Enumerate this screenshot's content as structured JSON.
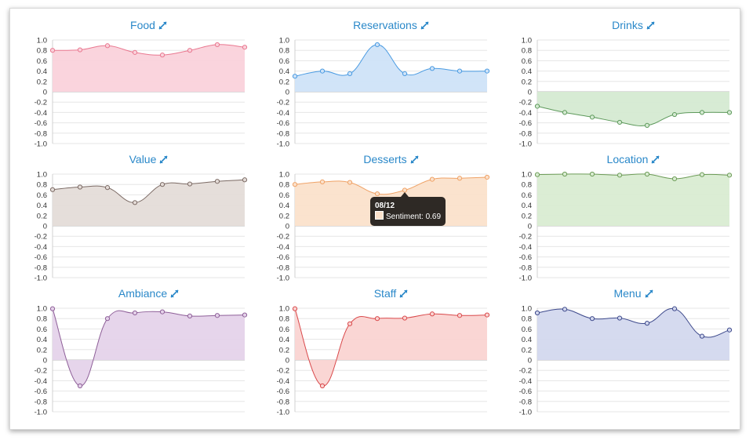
{
  "chart_data": [
    {
      "type": "area",
      "title": "Food",
      "x": [
        1,
        2,
        3,
        4,
        5,
        6,
        7,
        8
      ],
      "series": [
        {
          "values": [
            0.8,
            0.81,
            0.89,
            0.76,
            0.71,
            0.8,
            0.91,
            0.86
          ]
        }
      ],
      "ylim": [
        -1,
        1
      ],
      "yticks": [
        "1.0",
        "0.8",
        "0.6",
        "0.4",
        "0.2",
        "0",
        "-0.2",
        "-0.4",
        "-0.6",
        "-0.8",
        "-1.0"
      ],
      "grid": true,
      "line_color": "#e97890",
      "fill_color": "#fad2db"
    },
    {
      "type": "area",
      "title": "Reservations",
      "x": [
        1,
        2,
        3,
        4,
        5,
        6,
        7,
        8
      ],
      "series": [
        {
          "values": [
            0.3,
            0.4,
            0.35,
            0.91,
            0.35,
            0.45,
            0.4,
            0.4
          ]
        }
      ],
      "ylim": [
        -1,
        1
      ],
      "yticks": [
        "1.0",
        "0.8",
        "0.6",
        "0.4",
        "0.2",
        "0",
        "-0.2",
        "-0.4",
        "-0.6",
        "-0.8",
        "-1.0"
      ],
      "grid": true,
      "line_color": "#4a9be2",
      "fill_color": "#cfe3f8"
    },
    {
      "type": "area",
      "title": "Drinks",
      "x": [
        1,
        2,
        3,
        4,
        5,
        6,
        7,
        8
      ],
      "series": [
        {
          "values": [
            -0.28,
            -0.4,
            -0.49,
            -0.59,
            -0.65,
            -0.44,
            -0.4,
            -0.4
          ]
        }
      ],
      "ylim": [
        -1,
        1
      ],
      "yticks": [
        "1.0",
        "0.8",
        "0.6",
        "0.4",
        "0.2",
        "0",
        "-0.2",
        "-0.4",
        "-0.6",
        "-0.8",
        "-1.0"
      ],
      "grid": true,
      "line_color": "#5e9a5c",
      "fill_color": "#d5ead2"
    },
    {
      "type": "area",
      "title": "Value",
      "x": [
        1,
        2,
        3,
        4,
        5,
        6,
        7,
        8
      ],
      "series": [
        {
          "values": [
            0.7,
            0.75,
            0.74,
            0.45,
            0.8,
            0.81,
            0.86,
            0.89
          ]
        }
      ],
      "ylim": [
        -1,
        1
      ],
      "yticks": [
        "1.0",
        "0.8",
        "0.6",
        "0.4",
        "0.2",
        "0",
        "-0.2",
        "-0.4",
        "-0.6",
        "-0.8",
        "-1.0"
      ],
      "grid": true,
      "line_color": "#7b6a64",
      "fill_color": "#e4dcd8"
    },
    {
      "type": "area",
      "title": "Desserts",
      "x": [
        1,
        2,
        3,
        4,
        5,
        6,
        7,
        8
      ],
      "series": [
        {
          "values": [
            0.8,
            0.85,
            0.84,
            0.62,
            0.69,
            0.9,
            0.92,
            0.94
          ]
        }
      ],
      "ylim": [
        -1,
        1
      ],
      "yticks": [
        "1.0",
        "0.8",
        "0.6",
        "0.4",
        "0.2",
        "0",
        "-0.2",
        "-0.4",
        "-0.6",
        "-0.8",
        "-1.0"
      ],
      "grid": true,
      "line_color": "#efa266",
      "fill_color": "#fbe1cb"
    },
    {
      "type": "area",
      "title": "Location",
      "x": [
        1,
        2,
        3,
        4,
        5,
        6,
        7,
        8
      ],
      "series": [
        {
          "values": [
            0.99,
            1.0,
            1.0,
            0.98,
            1.0,
            0.91,
            0.99,
            0.98
          ]
        }
      ],
      "ylim": [
        -1,
        1
      ],
      "yticks": [
        "1.0",
        "0.8",
        "0.6",
        "0.4",
        "0.2",
        "0",
        "-0.2",
        "-0.4",
        "-0.6",
        "-0.8",
        "-1.0"
      ],
      "grid": true,
      "line_color": "#6d9c57",
      "fill_color": "#d9ecd2"
    },
    {
      "type": "area",
      "title": "Ambiance",
      "x": [
        1,
        2,
        3,
        4,
        5,
        6,
        7,
        8
      ],
      "series": [
        {
          "values": [
            0.99,
            -0.5,
            0.8,
            0.91,
            0.93,
            0.85,
            0.86,
            0.87
          ]
        }
      ],
      "ylim": [
        -1,
        1
      ],
      "yticks": [
        "1.0",
        "0.8",
        "0.6",
        "0.4",
        "0.2",
        "0",
        "-0.2",
        "-0.4",
        "-0.6",
        "-0.8",
        "-1.0"
      ],
      "grid": true,
      "line_color": "#8e5f98",
      "fill_color": "#e5d3ea"
    },
    {
      "type": "area",
      "title": "Staff",
      "x": [
        1,
        2,
        3,
        4,
        5,
        6,
        7,
        8
      ],
      "series": [
        {
          "values": [
            0.99,
            -0.5,
            0.7,
            0.8,
            0.81,
            0.89,
            0.86,
            0.87
          ]
        }
      ],
      "ylim": [
        -1,
        1
      ],
      "yticks": [
        "1.0",
        "0.8",
        "0.6",
        "0.4",
        "0.2",
        "0",
        "-0.2",
        "-0.4",
        "-0.6",
        "-0.8",
        "-1.0"
      ],
      "grid": true,
      "line_color": "#d9494b",
      "fill_color": "#fad4d2"
    },
    {
      "type": "area",
      "title": "Menu",
      "x": [
        1,
        2,
        3,
        4,
        5,
        6,
        7,
        8
      ],
      "series": [
        {
          "values": [
            0.91,
            0.98,
            0.8,
            0.81,
            0.71,
            0.99,
            0.46,
            0.58
          ]
        }
      ],
      "ylim": [
        -1,
        1
      ],
      "yticks": [
        "1.0",
        "0.8",
        "0.6",
        "0.4",
        "0.2",
        "0",
        "-0.2",
        "-0.4",
        "-0.6",
        "-0.8",
        "-1.0"
      ],
      "grid": true,
      "line_color": "#3e4a8c",
      "fill_color": "#d3d8ee"
    }
  ],
  "tooltip": {
    "chart": "Desserts",
    "point_index": 4,
    "title": "08/12",
    "label": "Sentiment: 0.69",
    "swatch_color": "#fbe1cb"
  },
  "expand_icon": "expand-arrows-icon",
  "accent_color": "#2a88c9"
}
